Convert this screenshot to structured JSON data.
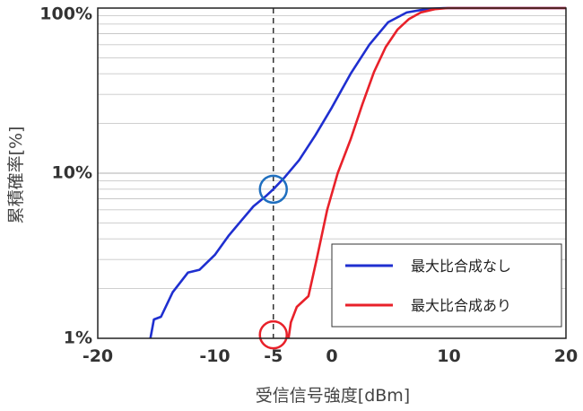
{
  "chart_data": {
    "type": "line",
    "xlabel": "受信信号強度[dBm]",
    "ylabel": "累積確率[%]",
    "xlim": [
      -20,
      20
    ],
    "ylim": [
      1,
      100
    ],
    "yscale": "log",
    "x_ticks": [
      -20,
      -10,
      -5,
      0,
      10,
      20
    ],
    "x_tick_labels": [
      "-20",
      "-10",
      "-5",
      "0",
      "10",
      "20"
    ],
    "y_ticks": [
      1,
      10,
      100
    ],
    "y_tick_labels": [
      "1%",
      "10%",
      "100%"
    ],
    "grid": "horizontal",
    "legend_position": "bottom-right",
    "reference_line_x": -5,
    "series": [
      {
        "name": "最大比合成なし",
        "color": "#1f2fd0",
        "points": [
          [
            -15.5,
            1.0
          ],
          [
            -15.2,
            1.3
          ],
          [
            -14.6,
            1.35
          ],
          [
            -13.6,
            1.9
          ],
          [
            -12.3,
            2.5
          ],
          [
            -11.3,
            2.6
          ],
          [
            -10.0,
            3.2
          ],
          [
            -8.8,
            4.2
          ],
          [
            -7.7,
            5.2
          ],
          [
            -6.7,
            6.3
          ],
          [
            -5.7,
            7.2
          ],
          [
            -5.0,
            8.0
          ],
          [
            -4.0,
            9.5
          ],
          [
            -2.8,
            12.0
          ],
          [
            -1.4,
            17.0
          ],
          [
            0.0,
            25.0
          ],
          [
            1.6,
            40.0
          ],
          [
            3.2,
            60.0
          ],
          [
            4.8,
            82.0
          ],
          [
            6.4,
            94.0
          ],
          [
            8.2,
            99.0
          ],
          [
            9.6,
            100.0
          ],
          [
            20.0,
            100.0
          ]
        ]
      },
      {
        "name": "最大比合成あり",
        "color": "#e8212a",
        "points": [
          [
            -3.7,
            1.0
          ],
          [
            -3.5,
            1.25
          ],
          [
            -3.0,
            1.55
          ],
          [
            -2.0,
            1.8
          ],
          [
            -1.3,
            3.0
          ],
          [
            -0.4,
            6.0
          ],
          [
            0.5,
            10.0
          ],
          [
            1.6,
            16.0
          ],
          [
            2.6,
            26.0
          ],
          [
            3.6,
            41.0
          ],
          [
            4.6,
            58.0
          ],
          [
            5.6,
            74.0
          ],
          [
            6.6,
            86.0
          ],
          [
            7.6,
            94.0
          ],
          [
            8.8,
            98.5
          ],
          [
            9.9,
            100.0
          ],
          [
            20.0,
            100.0
          ]
        ]
      }
    ],
    "annotations": [
      {
        "shape": "circle",
        "x": -5,
        "y": 8,
        "color": "#1f6fbf"
      },
      {
        "shape": "circle",
        "x": -5,
        "y": 1.05,
        "color": "#e8212a"
      }
    ]
  }
}
